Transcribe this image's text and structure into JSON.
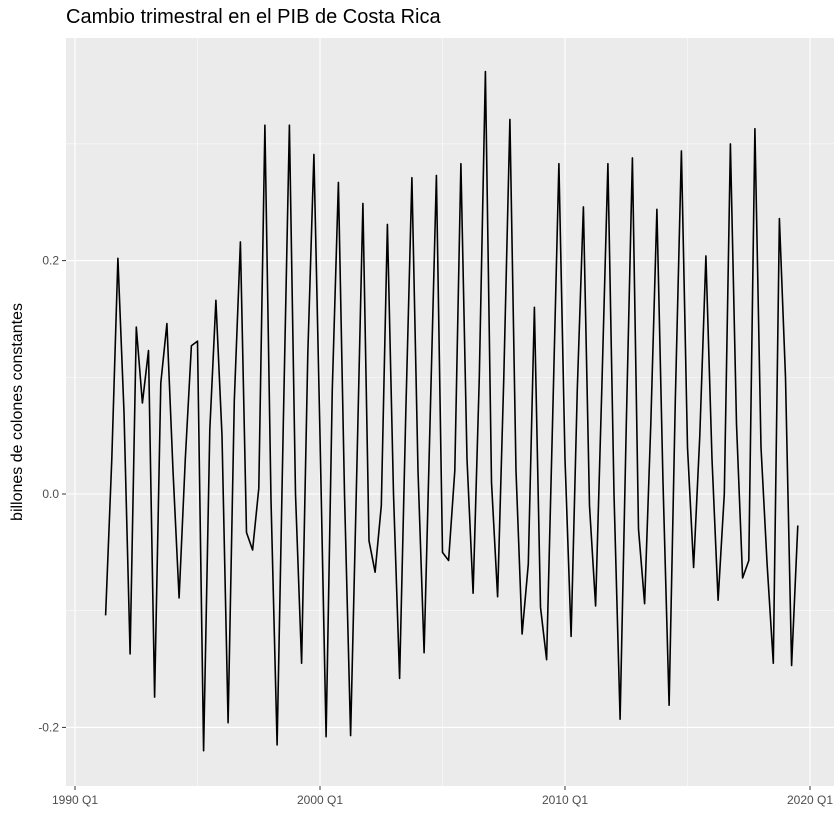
{
  "chart_data": {
    "type": "line",
    "title": "Cambio trimestral en el PIB de Costa Rica",
    "xlabel": "",
    "ylabel": "billones de colones constantes",
    "x_ticks": [
      "1990 Q1",
      "2000 Q1",
      "2010 Q1",
      "2020 Q1"
    ],
    "y_ticks": [
      "-0.2",
      "0.0",
      "0.2"
    ],
    "x_range": [
      "1990 Q1",
      "2020 Q1"
    ],
    "ylim": [
      -0.24,
      0.39
    ],
    "grid": true,
    "legend": "none",
    "background": "#EBEBEB",
    "line_color": "#000000",
    "series": [
      {
        "x": [
          "1991 Q2",
          "1991 Q3",
          "1991 Q4",
          "1992 Q1",
          "1992 Q2",
          "1992 Q3",
          "1992 Q4",
          "1993 Q1",
          "1993 Q2",
          "1993 Q3",
          "1993 Q4",
          "1994 Q1",
          "1994 Q2",
          "1994 Q3",
          "1994 Q4",
          "1995 Q1",
          "1995 Q2",
          "1995 Q3",
          "1995 Q4",
          "1996 Q1",
          "1996 Q2",
          "1996 Q3",
          "1996 Q4",
          "1997 Q1",
          "1997 Q2",
          "1997 Q3",
          "1997 Q4",
          "1998 Q1",
          "1998 Q2",
          "1998 Q3",
          "1998 Q4",
          "1999 Q1",
          "1999 Q2",
          "1999 Q3",
          "1999 Q4",
          "2000 Q1",
          "2000 Q2",
          "2000 Q3",
          "2000 Q4",
          "2001 Q1",
          "2001 Q2",
          "2001 Q3",
          "2001 Q4",
          "2002 Q1",
          "2002 Q2",
          "2002 Q3",
          "2002 Q4",
          "2003 Q1",
          "2003 Q2",
          "2003 Q3",
          "2003 Q4",
          "2004 Q1",
          "2004 Q2",
          "2004 Q3",
          "2004 Q4",
          "2005 Q1",
          "2005 Q2",
          "2005 Q3",
          "2005 Q4",
          "2006 Q1",
          "2006 Q2",
          "2006 Q3",
          "2006 Q4",
          "2007 Q1",
          "2007 Q2",
          "2007 Q3",
          "2007 Q4",
          "2008 Q1",
          "2008 Q2",
          "2008 Q3",
          "2008 Q4",
          "2009 Q1",
          "2009 Q2",
          "2009 Q3",
          "2009 Q4",
          "2010 Q1",
          "2010 Q2",
          "2010 Q3",
          "2010 Q4",
          "2011 Q1",
          "2011 Q2",
          "2011 Q3",
          "2011 Q4",
          "2012 Q1",
          "2012 Q2",
          "2012 Q3",
          "2012 Q4",
          "2013 Q1",
          "2013 Q2",
          "2013 Q3",
          "2013 Q4",
          "2014 Q1",
          "2014 Q2",
          "2014 Q3",
          "2014 Q4",
          "2015 Q1",
          "2015 Q2",
          "2015 Q3",
          "2015 Q4",
          "2016 Q1",
          "2016 Q2",
          "2016 Q3",
          "2016 Q4",
          "2017 Q1",
          "2017 Q2",
          "2017 Q3",
          "2017 Q4",
          "2018 Q1",
          "2018 Q2",
          "2018 Q3",
          "2018 Q4",
          "2019 Q1",
          "2019 Q2",
          "2019 Q3"
        ],
        "values": [
          -0.104,
          0.03,
          0.202,
          0.07,
          -0.137,
          0.143,
          0.078,
          0.123,
          -0.174,
          0.095,
          0.146,
          0.02,
          -0.089,
          0.03,
          0.127,
          0.131,
          -0.22,
          0.055,
          0.166,
          0.05,
          -0.196,
          0.08,
          0.216,
          -0.033,
          -0.048,
          0.005,
          0.316,
          -0.005,
          -0.215,
          0.06,
          0.316,
          0.0,
          -0.145,
          0.12,
          0.291,
          0.05,
          -0.208,
          0.09,
          0.267,
          0.0,
          -0.207,
          0.02,
          0.249,
          -0.04,
          -0.067,
          -0.01,
          0.231,
          0.0,
          -0.158,
          0.07,
          0.271,
          0.02,
          -0.136,
          0.07,
          0.273,
          -0.05,
          -0.057,
          0.02,
          0.283,
          0.03,
          -0.085,
          0.1,
          0.362,
          0.01,
          -0.088,
          0.1,
          0.321,
          0.02,
          -0.12,
          -0.06,
          0.16,
          -0.097,
          -0.142,
          0.07,
          0.283,
          0.03,
          -0.122,
          0.09,
          0.246,
          -0.01,
          -0.096,
          0.09,
          0.283,
          0.0,
          -0.193,
          0.06,
          0.288,
          -0.03,
          -0.094,
          0.06,
          0.244,
          0.01,
          -0.181,
          0.08,
          0.294,
          0.04,
          -0.063,
          0.05,
          0.204,
          0.03,
          -0.091,
          0.0,
          0.3,
          0.06,
          -0.072,
          -0.057,
          0.313,
          0.04,
          -0.06,
          -0.145,
          0.236,
          0.1,
          -0.147,
          -0.027
        ]
      }
    ]
  }
}
